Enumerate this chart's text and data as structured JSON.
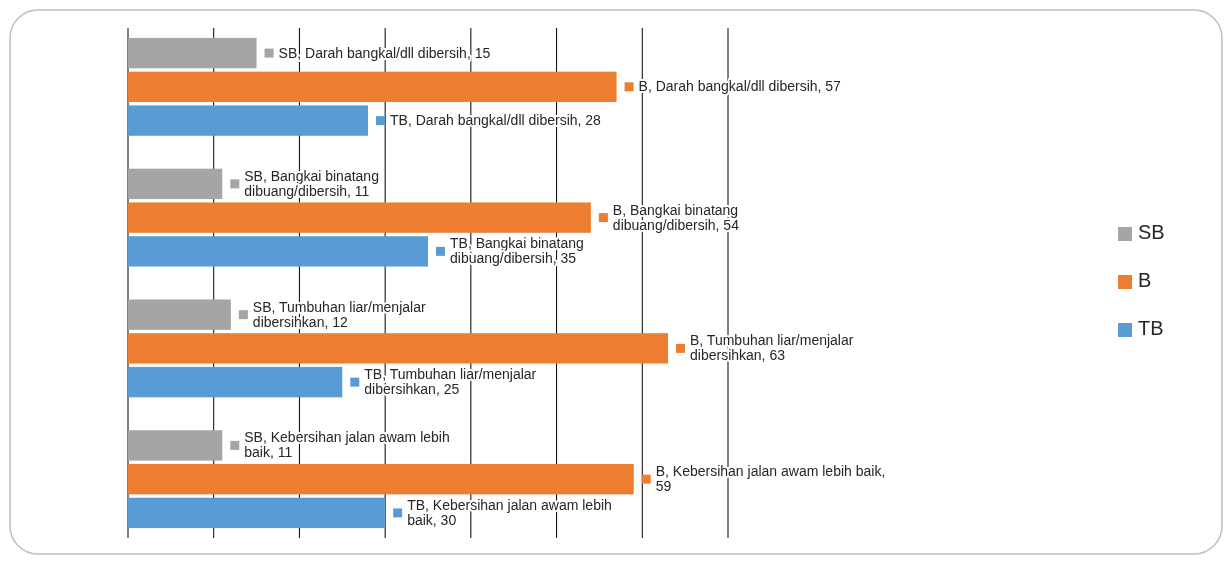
{
  "chart_data": {
    "type": "bar",
    "orientation": "horizontal",
    "categories": [
      null,
      null,
      null,
      null
    ],
    "series": [
      {
        "name": "SB",
        "color": "#a5a5a5",
        "values": [
          15,
          11,
          12,
          11
        ],
        "value_labels": [
          "SB, Darah bangkal/dll dibersih, 15",
          "SB, Bangkai binatang dibuang/dibersih, 11",
          "SB, Tumbuhan liar/menjalar dibersihkan, 12",
          "SB, Kebersihan jalan awam lebih baik, 11"
        ]
      },
      {
        "name": "B",
        "color": "#ed7d31",
        "values": [
          57,
          54,
          63,
          59
        ],
        "value_labels": [
          "B, Darah bangkal/dll dibersih, 57",
          "B, Bangkai binatang dibuang/dibersih, 54",
          "B, Tumbuhan liar/menjalar dibersihkan, 63",
          "B, Kebersihan jalan awam lebih baik, 59"
        ]
      },
      {
        "name": "TB",
        "color": "#5b9bd5",
        "values": [
          28,
          35,
          25,
          30
        ],
        "value_labels": [
          "TB, Darah bangkal/dll dibersih, 28",
          "TB, Bangkai binatang dibuang/dibersih, 35",
          "TB, Tumbuhan liar/menjalar dibersihkan, 25",
          "TB, Kebersihan jalan awam lebih baik, 30"
        ]
      }
    ],
    "xlim": [
      0,
      70
    ],
    "xticks": [
      {
        "value": 0,
        "label": null
      },
      {
        "value": 10,
        "label": null
      },
      {
        "value": 20,
        "label": null
      },
      {
        "value": 30,
        "label": null
      },
      {
        "value": 40,
        "label": null
      },
      {
        "value": 50,
        "label": null
      },
      {
        "value": 60,
        "label": null
      },
      {
        "value": 70,
        "label": null
      }
    ],
    "grid": "x",
    "legend": "right"
  }
}
